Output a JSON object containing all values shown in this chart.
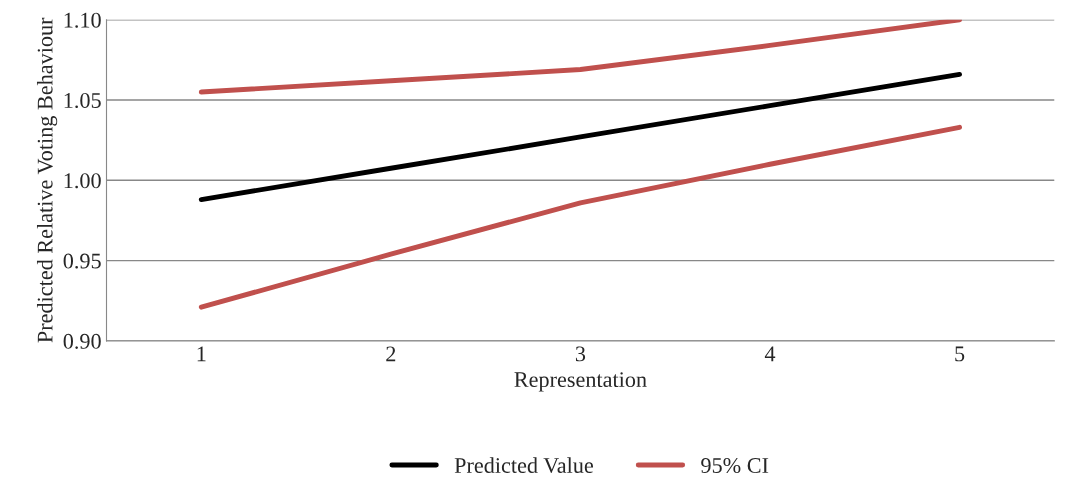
{
  "chart_data": {
    "type": "line",
    "xlabel": "Representation",
    "ylabel": "Predicted Relative Voting Behaviour",
    "categories": [
      "1",
      "2",
      "3",
      "4",
      "5"
    ],
    "series": [
      {
        "name": "Predicted Value",
        "color": "#000000",
        "values": [
          0.988,
          1.0075,
          1.027,
          1.0465,
          1.066
        ]
      },
      {
        "name": "95% CI",
        "color": "#c0504d",
        "values": [
          1.055,
          1.062,
          1.069,
          1.084,
          1.1
        ]
      },
      {
        "color": "#c0504d",
        "values": [
          0.921,
          0.954,
          0.986,
          1.01,
          1.033
        ]
      }
    ],
    "ylim": [
      0.9,
      1.1
    ],
    "yticks": [
      {
        "value": 0.9,
        "label": "0.90"
      },
      {
        "value": 0.95,
        "label": "0.95"
      },
      {
        "value": 1.0,
        "label": "1.00"
      },
      {
        "value": 1.05,
        "label": "1.05"
      },
      {
        "value": 1.1,
        "label": "1.10"
      }
    ],
    "grid": "y",
    "legend": "bottom",
    "marker": "none",
    "line_style": "solid"
  }
}
